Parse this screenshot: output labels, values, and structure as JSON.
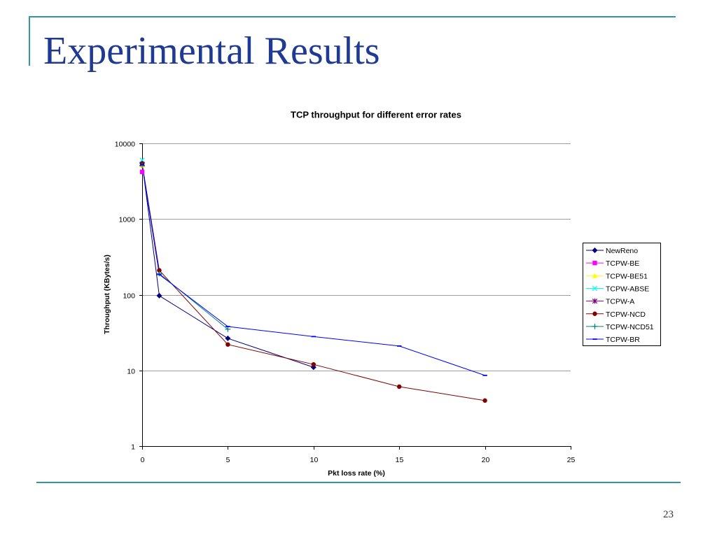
{
  "slide": {
    "title": "Experimental Results",
    "page_number": "23",
    "title_color": "#1F3A93",
    "accent_color": "#2E9AA0"
  },
  "chart_data": {
    "type": "line",
    "title": "TCP throughput for different error rates",
    "xlabel": "Pkt loss rate (%)",
    "ylabel": "Throughput (KBytes/s)",
    "xlim": [
      0,
      25
    ],
    "ylim": [
      1,
      10000
    ],
    "y_scale": "log",
    "x_ticks": [
      0,
      5,
      10,
      15,
      20,
      25
    ],
    "y_ticks": [
      1,
      10,
      100,
      1000,
      10000
    ],
    "grid": true,
    "legend_position": "right",
    "x": [
      0,
      1,
      5,
      10,
      15,
      20
    ],
    "series": [
      {
        "name": "NewReno",
        "color": "#000080",
        "marker": "diamond",
        "values": [
          5500,
          97,
          26.5,
          11,
          null,
          null
        ]
      },
      {
        "name": "TCPW-BE",
        "color": "#FF00FF",
        "marker": "square",
        "values": [
          4200,
          null,
          null,
          null,
          null,
          null
        ]
      },
      {
        "name": "TCPW-BE51",
        "color": "#FFFF00",
        "marker": "triangle",
        "values": [
          5100,
          null,
          null,
          null,
          null,
          null
        ]
      },
      {
        "name": "TCPW-ABSE",
        "color": "#00FFFF",
        "marker": "x",
        "values": [
          6000,
          null,
          null,
          null,
          null,
          null
        ]
      },
      {
        "name": "TCPW-A",
        "color": "#800080",
        "marker": "star",
        "values": [
          5300,
          null,
          null,
          null,
          null,
          null
        ]
      },
      {
        "name": "TCPW-NCD",
        "color": "#800000",
        "marker": "circle",
        "values": [
          5400,
          210,
          22,
          12,
          6.1,
          4
        ]
      },
      {
        "name": "TCPW-NCD51",
        "color": "#008080",
        "marker": "plus",
        "values": [
          5100,
          190,
          35,
          null,
          null,
          null
        ]
      },
      {
        "name": "TCPW-BR",
        "color": "#0000FF",
        "marker": "dash",
        "values": [
          5200,
          185,
          38,
          28,
          21,
          8.6
        ]
      }
    ]
  }
}
